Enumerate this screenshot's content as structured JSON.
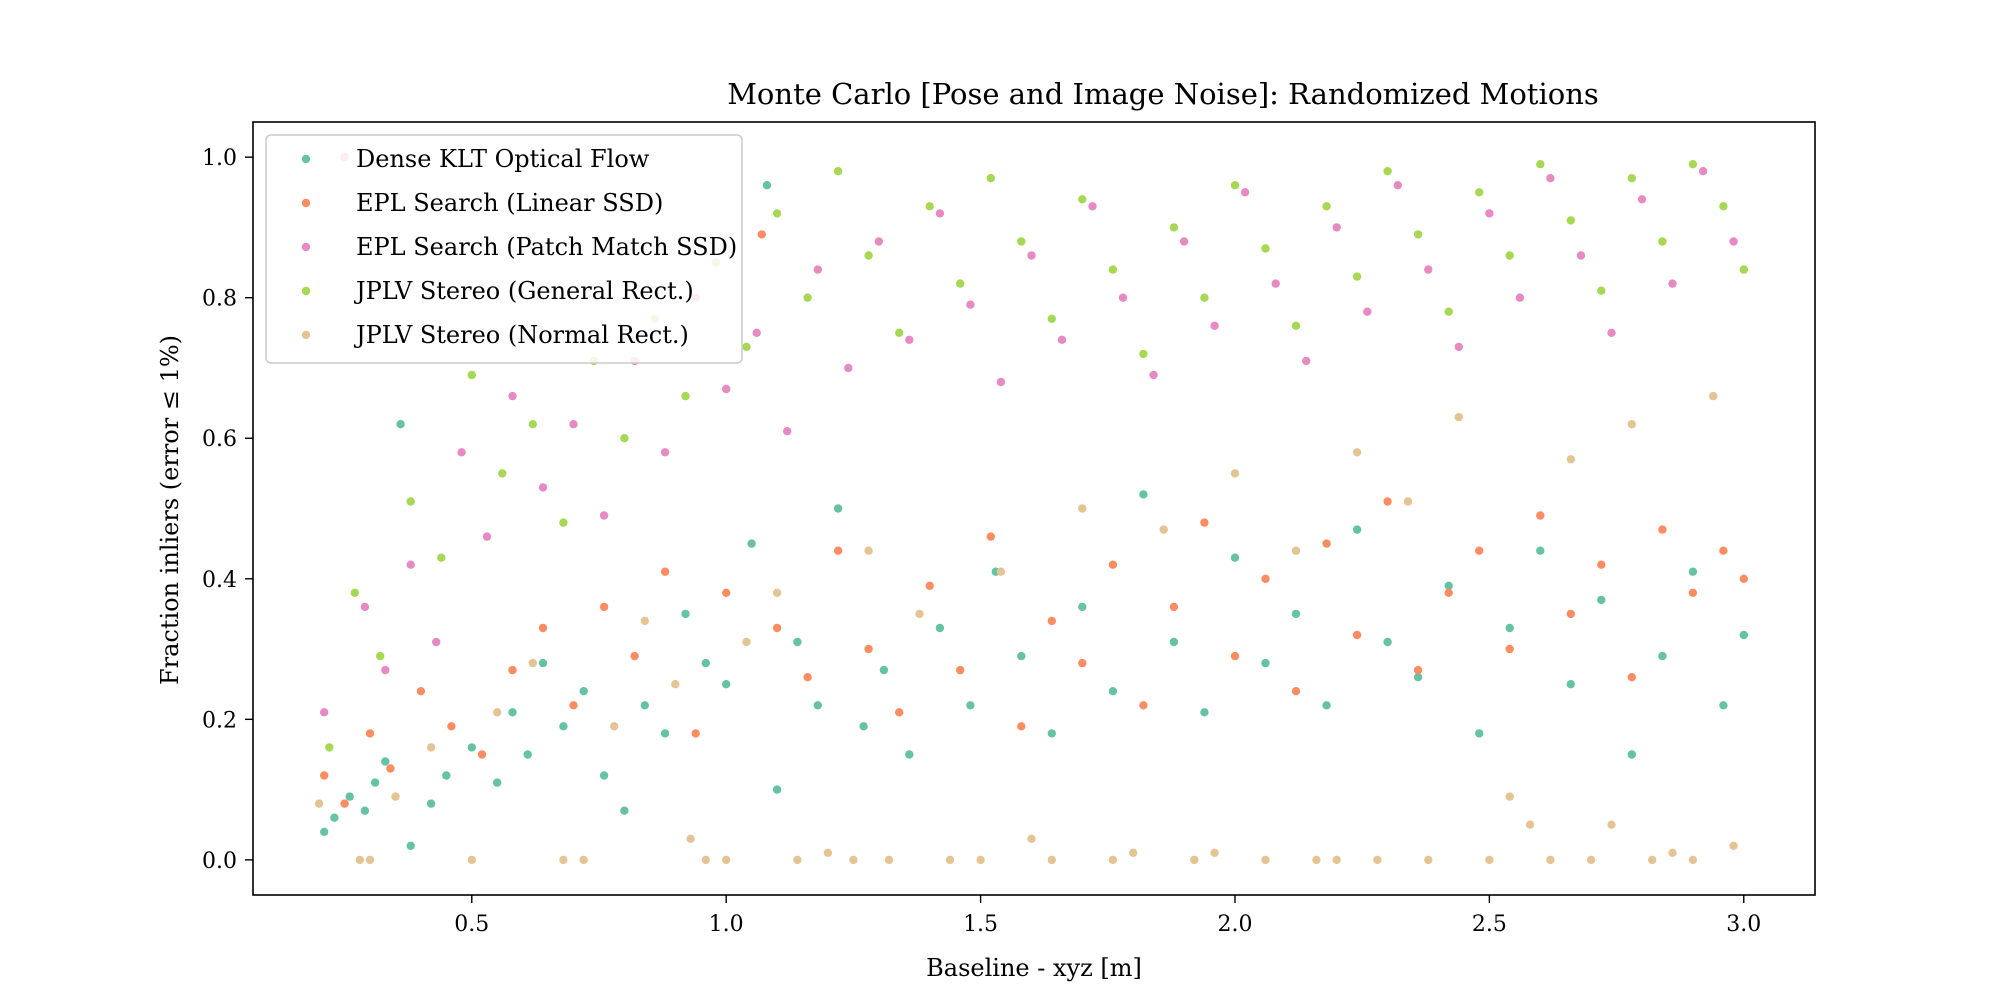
{
  "chart_data": {
    "type": "scatter",
    "title": "Monte Carlo [Pose and Image Noise]: Randomized Motions",
    "xlabel": "Baseline - xyz [m]",
    "ylabel": "Fraction inliers (error ≤ 1%)",
    "xlim": [
      0.07,
      3.14
    ],
    "ylim": [
      -0.05,
      1.05
    ],
    "xticks": [
      0.5,
      1.0,
      1.5,
      2.0,
      2.5,
      3.0
    ],
    "xtick_labels": [
      "0.5",
      "1.0",
      "1.5",
      "2.0",
      "2.5",
      "3.0"
    ],
    "yticks": [
      0.0,
      0.2,
      0.4,
      0.6,
      0.8,
      1.0
    ],
    "ytick_labels": [
      "0.0",
      "0.2",
      "0.4",
      "0.6",
      "0.8",
      "1.0"
    ],
    "grid": false,
    "legend_position": "upper-left",
    "series": [
      {
        "name": "Dense KLT Optical Flow",
        "color": "#66c2a5",
        "points": [
          [
            0.21,
            0.04
          ],
          [
            0.23,
            0.06
          ],
          [
            0.26,
            0.09
          ],
          [
            0.29,
            0.07
          ],
          [
            0.31,
            0.11
          ],
          [
            0.33,
            0.14
          ],
          [
            0.36,
            0.62
          ],
          [
            0.38,
            0.02
          ],
          [
            0.42,
            0.08
          ],
          [
            0.45,
            0.12
          ],
          [
            0.5,
            0.16
          ],
          [
            0.55,
            0.11
          ],
          [
            0.58,
            0.21
          ],
          [
            0.61,
            0.15
          ],
          [
            0.64,
            0.28
          ],
          [
            0.68,
            0.19
          ],
          [
            0.72,
            0.24
          ],
          [
            0.76,
            0.12
          ],
          [
            0.8,
            0.07
          ],
          [
            0.84,
            0.22
          ],
          [
            0.88,
            0.18
          ],
          [
            0.92,
            0.35
          ],
          [
            0.96,
            0.28
          ],
          [
            1.0,
            0.25
          ],
          [
            1.05,
            0.45
          ],
          [
            1.08,
            0.96
          ],
          [
            1.1,
            0.1
          ],
          [
            1.14,
            0.31
          ],
          [
            1.18,
            0.22
          ],
          [
            1.22,
            0.5
          ],
          [
            1.27,
            0.19
          ],
          [
            1.31,
            0.27
          ],
          [
            1.36,
            0.15
          ],
          [
            1.42,
            0.33
          ],
          [
            1.48,
            0.22
          ],
          [
            1.53,
            0.41
          ],
          [
            1.58,
            0.29
          ],
          [
            1.64,
            0.18
          ],
          [
            1.7,
            0.36
          ],
          [
            1.76,
            0.24
          ],
          [
            1.82,
            0.52
          ],
          [
            1.88,
            0.31
          ],
          [
            1.94,
            0.21
          ],
          [
            2.0,
            0.43
          ],
          [
            2.06,
            0.28
          ],
          [
            2.12,
            0.35
          ],
          [
            2.18,
            0.22
          ],
          [
            2.24,
            0.47
          ],
          [
            2.3,
            0.31
          ],
          [
            2.36,
            0.26
          ],
          [
            2.42,
            0.39
          ],
          [
            2.48,
            0.18
          ],
          [
            2.54,
            0.33
          ],
          [
            2.6,
            0.44
          ],
          [
            2.66,
            0.25
          ],
          [
            2.72,
            0.37
          ],
          [
            2.78,
            0.15
          ],
          [
            2.84,
            0.29
          ],
          [
            2.9,
            0.41
          ],
          [
            2.96,
            0.22
          ],
          [
            3.0,
            0.32
          ]
        ]
      },
      {
        "name": "EPL Search (Linear SSD)",
        "color": "#fc8d62",
        "points": [
          [
            0.21,
            0.12
          ],
          [
            0.25,
            0.08
          ],
          [
            0.3,
            0.18
          ],
          [
            0.34,
            0.13
          ],
          [
            0.4,
            0.24
          ],
          [
            0.46,
            0.19
          ],
          [
            0.52,
            0.15
          ],
          [
            0.58,
            0.27
          ],
          [
            0.64,
            0.33
          ],
          [
            0.7,
            0.22
          ],
          [
            0.76,
            0.36
          ],
          [
            0.82,
            0.29
          ],
          [
            0.88,
            0.41
          ],
          [
            0.94,
            0.18
          ],
          [
            1.0,
            0.38
          ],
          [
            1.07,
            0.89
          ],
          [
            1.1,
            0.33
          ],
          [
            1.16,
            0.26
          ],
          [
            1.22,
            0.44
          ],
          [
            1.28,
            0.3
          ],
          [
            1.34,
            0.21
          ],
          [
            1.4,
            0.39
          ],
          [
            1.46,
            0.27
          ],
          [
            1.52,
            0.46
          ],
          [
            1.58,
            0.19
          ],
          [
            1.64,
            0.34
          ],
          [
            1.7,
            0.28
          ],
          [
            1.76,
            0.42
          ],
          [
            1.82,
            0.22
          ],
          [
            1.88,
            0.36
          ],
          [
            1.94,
            0.48
          ],
          [
            2.0,
            0.29
          ],
          [
            2.06,
            0.4
          ],
          [
            2.12,
            0.24
          ],
          [
            2.18,
            0.45
          ],
          [
            2.24,
            0.32
          ],
          [
            2.3,
            0.51
          ],
          [
            2.36,
            0.27
          ],
          [
            2.42,
            0.38
          ],
          [
            2.48,
            0.44
          ],
          [
            2.54,
            0.3
          ],
          [
            2.6,
            0.49
          ],
          [
            2.66,
            0.35
          ],
          [
            2.72,
            0.42
          ],
          [
            2.78,
            0.26
          ],
          [
            2.84,
            0.47
          ],
          [
            2.9,
            0.38
          ],
          [
            2.96,
            0.44
          ],
          [
            3.0,
            0.4
          ]
        ]
      },
      {
        "name": "EPL Search (Patch Match SSD)",
        "color": "#e78ac3",
        "points": [
          [
            0.21,
            0.21
          ],
          [
            0.25,
            1.0
          ],
          [
            0.29,
            0.36
          ],
          [
            0.33,
            0.27
          ],
          [
            0.38,
            0.42
          ],
          [
            0.43,
            0.31
          ],
          [
            0.48,
            0.58
          ],
          [
            0.53,
            0.46
          ],
          [
            0.58,
            0.66
          ],
          [
            0.64,
            0.53
          ],
          [
            0.7,
            0.62
          ],
          [
            0.76,
            0.49
          ],
          [
            0.82,
            0.71
          ],
          [
            0.88,
            0.58
          ],
          [
            0.94,
            0.8
          ],
          [
            1.0,
            0.67
          ],
          [
            1.06,
            0.75
          ],
          [
            1.12,
            0.61
          ],
          [
            1.18,
            0.84
          ],
          [
            1.24,
            0.7
          ],
          [
            1.3,
            0.88
          ],
          [
            1.36,
            0.74
          ],
          [
            1.42,
            0.92
          ],
          [
            1.48,
            0.79
          ],
          [
            1.54,
            0.68
          ],
          [
            1.6,
            0.86
          ],
          [
            1.66,
            0.74
          ],
          [
            1.72,
            0.93
          ],
          [
            1.78,
            0.8
          ],
          [
            1.84,
            0.69
          ],
          [
            1.9,
            0.88
          ],
          [
            1.96,
            0.76
          ],
          [
            2.02,
            0.95
          ],
          [
            2.08,
            0.82
          ],
          [
            2.14,
            0.71
          ],
          [
            2.2,
            0.9
          ],
          [
            2.26,
            0.78
          ],
          [
            2.32,
            0.96
          ],
          [
            2.38,
            0.84
          ],
          [
            2.44,
            0.73
          ],
          [
            2.5,
            0.92
          ],
          [
            2.56,
            0.8
          ],
          [
            2.62,
            0.97
          ],
          [
            2.68,
            0.86
          ],
          [
            2.74,
            0.75
          ],
          [
            2.8,
            0.94
          ],
          [
            2.86,
            0.82
          ],
          [
            2.92,
            0.98
          ],
          [
            2.98,
            0.88
          ]
        ]
      },
      {
        "name": "JPLV Stereo (General Rect.)",
        "color": "#a6d854",
        "points": [
          [
            0.22,
            0.16
          ],
          [
            0.27,
            0.38
          ],
          [
            0.32,
            0.29
          ],
          [
            0.38,
            0.51
          ],
          [
            0.44,
            0.43
          ],
          [
            0.5,
            0.69
          ],
          [
            0.56,
            0.55
          ],
          [
            0.62,
            0.62
          ],
          [
            0.68,
            0.48
          ],
          [
            0.74,
            0.71
          ],
          [
            0.8,
            0.6
          ],
          [
            0.86,
            0.77
          ],
          [
            0.92,
            0.66
          ],
          [
            0.98,
            0.85
          ],
          [
            1.04,
            0.73
          ],
          [
            1.1,
            0.92
          ],
          [
            1.16,
            0.8
          ],
          [
            1.22,
            0.98
          ],
          [
            1.28,
            0.86
          ],
          [
            1.34,
            0.75
          ],
          [
            1.4,
            0.93
          ],
          [
            1.46,
            0.82
          ],
          [
            1.52,
            0.97
          ],
          [
            1.58,
            0.88
          ],
          [
            1.64,
            0.77
          ],
          [
            1.7,
            0.94
          ],
          [
            1.76,
            0.84
          ],
          [
            1.82,
            0.72
          ],
          [
            1.88,
            0.9
          ],
          [
            1.94,
            0.8
          ],
          [
            2.0,
            0.96
          ],
          [
            2.06,
            0.87
          ],
          [
            2.12,
            0.76
          ],
          [
            2.18,
            0.93
          ],
          [
            2.24,
            0.83
          ],
          [
            2.3,
            0.98
          ],
          [
            2.36,
            0.89
          ],
          [
            2.42,
            0.78
          ],
          [
            2.48,
            0.95
          ],
          [
            2.54,
            0.86
          ],
          [
            2.6,
            0.99
          ],
          [
            2.66,
            0.91
          ],
          [
            2.72,
            0.81
          ],
          [
            2.78,
            0.97
          ],
          [
            2.84,
            0.88
          ],
          [
            2.9,
            0.99
          ],
          [
            2.96,
            0.93
          ],
          [
            3.0,
            0.84
          ]
        ]
      },
      {
        "name": "JPLV Stereo (Normal Rect.)",
        "color": "#e5c494",
        "points": [
          [
            0.2,
            0.08
          ],
          [
            0.28,
            0.0
          ],
          [
            0.3,
            0.0
          ],
          [
            0.35,
            0.09
          ],
          [
            0.42,
            0.16
          ],
          [
            0.5,
            0.0
          ],
          [
            0.55,
            0.21
          ],
          [
            0.62,
            0.28
          ],
          [
            0.68,
            0.0
          ],
          [
            0.72,
            0.0
          ],
          [
            0.78,
            0.19
          ],
          [
            0.84,
            0.34
          ],
          [
            0.9,
            0.25
          ],
          [
            0.93,
            0.03
          ],
          [
            0.96,
            0.0
          ],
          [
            1.0,
            0.0
          ],
          [
            1.04,
            0.31
          ],
          [
            1.1,
            0.38
          ],
          [
            1.14,
            0.0
          ],
          [
            1.2,
            0.01
          ],
          [
            1.25,
            0.0
          ],
          [
            1.28,
            0.44
          ],
          [
            1.32,
            0.0
          ],
          [
            1.38,
            0.35
          ],
          [
            1.44,
            0.0
          ],
          [
            1.5,
            0.0
          ],
          [
            1.54,
            0.41
          ],
          [
            1.6,
            0.03
          ],
          [
            1.64,
            0.0
          ],
          [
            1.7,
            0.5
          ],
          [
            1.76,
            0.0
          ],
          [
            1.8,
            0.01
          ],
          [
            1.86,
            0.47
          ],
          [
            1.92,
            0.0
          ],
          [
            1.96,
            0.01
          ],
          [
            2.0,
            0.55
          ],
          [
            2.06,
            0.0
          ],
          [
            2.12,
            0.44
          ],
          [
            2.16,
            0.0
          ],
          [
            2.2,
            0.0
          ],
          [
            2.24,
            0.58
          ],
          [
            2.28,
            0.0
          ],
          [
            2.34,
            0.51
          ],
          [
            2.38,
            0.0
          ],
          [
            2.44,
            0.63
          ],
          [
            2.5,
            0.0
          ],
          [
            2.54,
            0.09
          ],
          [
            2.58,
            0.05
          ],
          [
            2.62,
            0.0
          ],
          [
            2.66,
            0.57
          ],
          [
            2.7,
            0.0
          ],
          [
            2.74,
            0.05
          ],
          [
            2.78,
            0.62
          ],
          [
            2.82,
            0.0
          ],
          [
            2.86,
            0.01
          ],
          [
            2.9,
            0.0
          ],
          [
            2.94,
            0.66
          ],
          [
            2.98,
            0.02
          ]
        ]
      }
    ]
  }
}
